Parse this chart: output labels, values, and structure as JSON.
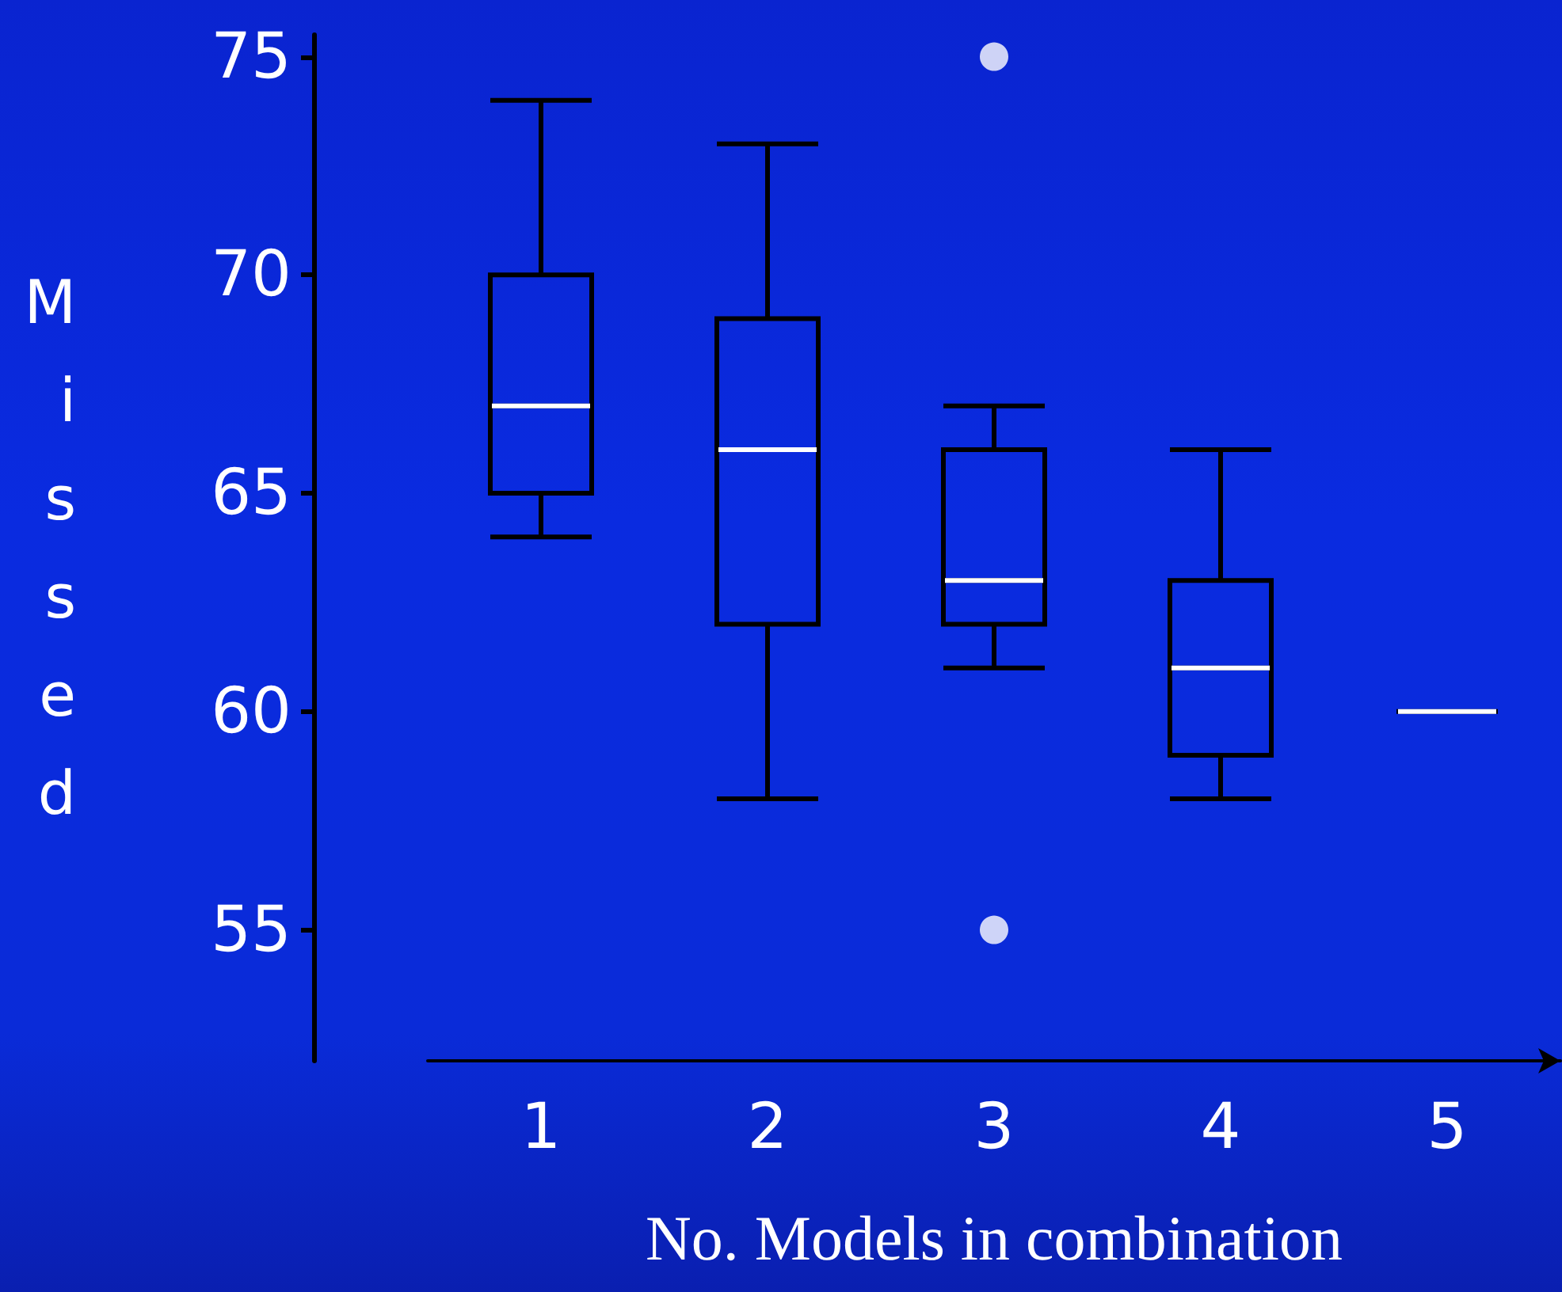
{
  "chart_data": {
    "type": "box",
    "xlabel": "No. Models in combination",
    "ylabel": "Missed",
    "categories": [
      "1",
      "2",
      "3",
      "4",
      "5"
    ],
    "boxes": [
      {
        "low": 64,
        "q1": 65,
        "median": 67,
        "q3": 70,
        "high": 74
      },
      {
        "low": 58,
        "q1": 62,
        "median": 66,
        "q3": 69,
        "high": 73
      },
      {
        "low": 61,
        "q1": 62,
        "median": 63,
        "q3": 66,
        "high": 67,
        "outliers": [
          75,
          55
        ]
      },
      {
        "low": 58,
        "q1": 59,
        "median": 61,
        "q3": 63,
        "high": 66
      },
      {
        "low": 60,
        "q1": 60,
        "median": 60,
        "q3": 60,
        "high": 60
      }
    ],
    "ylim": [
      52,
      75.5
    ],
    "yticks": [
      55,
      60,
      65,
      70,
      75
    ],
    "grid": false
  }
}
